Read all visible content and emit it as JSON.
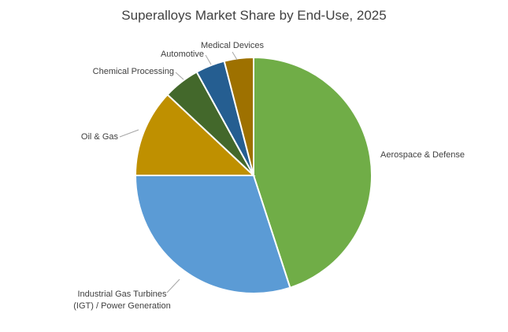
{
  "chart_data": {
    "type": "pie",
    "title": "Superalloys Market Share by End-Use, 2025",
    "categories": [
      "Aerospace & Defense",
      "Industrial Gas Turbines (IGT) / Power Generation",
      "Oil & Gas",
      "Chemical Processing",
      "Automotive",
      "Medical Devices"
    ],
    "values": [
      45,
      30,
      12,
      5,
      4,
      4
    ],
    "colors": [
      "#70ad47",
      "#5b9bd5",
      "#bf9000",
      "#43682b",
      "#255e91",
      "#9e7100"
    ]
  }
}
